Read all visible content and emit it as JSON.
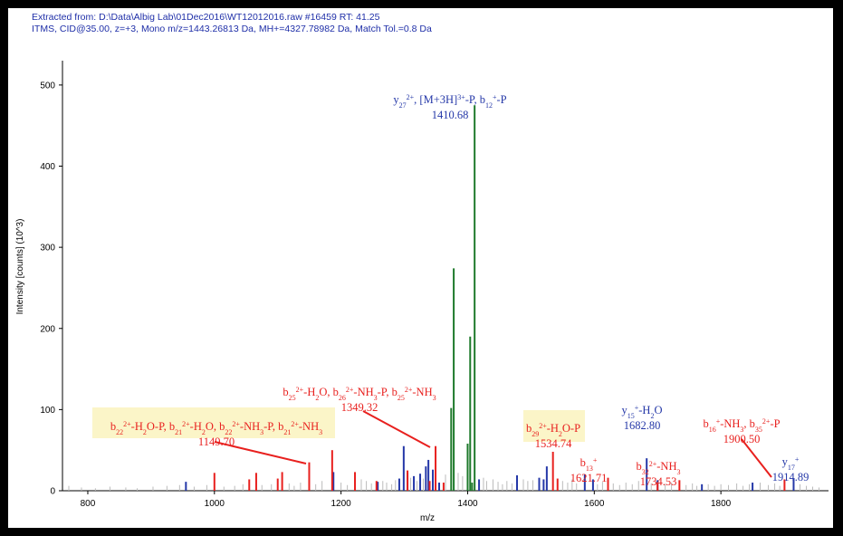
{
  "header": {
    "line1": "Extracted from: D:\\Data\\Albig Lab\\01Dec2016\\WT12012016.raw  #16459  RT: 41.25",
    "line2": "ITMS, CID@35.00, z=+3, Mono m/z=1443.26813 Da, MH+=4327.78982 Da, Match Tol.=0.8 Da"
  },
  "colors": {
    "matched_b": "#e8201e",
    "matched_y": "#2538a8",
    "precursor": "#1f7a2c",
    "unmatched": "#bbbbbb",
    "highlight_box": "#fbf5c8"
  },
  "chart_data": {
    "type": "bar",
    "xlabel": "m/z",
    "ylabel": "Intensity [counts] (10^3)",
    "xlim": [
      760,
      1970
    ],
    "ylim": [
      0,
      530
    ],
    "xticks": [
      800,
      1000,
      1200,
      1400,
      1600,
      1800
    ],
    "yticks": [
      0,
      100,
      200,
      300,
      400,
      500
    ],
    "series": [
      {
        "name": "green",
        "color": "#1f7a2c",
        "points": [
          [
            1374,
            102
          ],
          [
            1378,
            274
          ],
          [
            1400,
            58
          ],
          [
            1404,
            190
          ],
          [
            1411,
            475
          ],
          [
            1407,
            10
          ]
        ]
      },
      {
        "name": "red",
        "color": "#e8201e",
        "points": [
          [
            1000,
            22
          ],
          [
            1055,
            14
          ],
          [
            1066,
            22
          ],
          [
            1100,
            15
          ],
          [
            1107,
            23
          ],
          [
            1149.7,
            35
          ],
          [
            1186,
            50
          ],
          [
            1222,
            23
          ],
          [
            1256,
            12
          ],
          [
            1305,
            25
          ],
          [
            1340,
            12
          ],
          [
            1349.32,
            55
          ],
          [
            1362,
            10
          ],
          [
            1534.74,
            48
          ],
          [
            1542,
            15
          ],
          [
            1621.71,
            16
          ],
          [
            1700,
            10
          ],
          [
            1734.53,
            13
          ],
          [
            1900.5,
            14
          ]
        ]
      },
      {
        "name": "blue",
        "color": "#2538a8",
        "points": [
          [
            955,
            11
          ],
          [
            1188,
            23
          ],
          [
            1258,
            11
          ],
          [
            1292,
            15
          ],
          [
            1299,
            55
          ],
          [
            1305,
            22
          ],
          [
            1315,
            18
          ],
          [
            1325,
            21
          ],
          [
            1334,
            30
          ],
          [
            1338,
            38
          ],
          [
            1345,
            26
          ],
          [
            1355,
            10
          ],
          [
            1418,
            14
          ],
          [
            1478,
            19
          ],
          [
            1513,
            16
          ],
          [
            1520,
            14
          ],
          [
            1525,
            30
          ],
          [
            1585,
            20
          ],
          [
            1598,
            14
          ],
          [
            1682.8,
            40
          ],
          [
            1700,
            13
          ],
          [
            1770,
            8
          ],
          [
            1850,
            10
          ],
          [
            1914.89,
            15
          ]
        ]
      },
      {
        "name": "gray",
        "color": "#bbbbbb",
        "points": [
          [
            770,
            6
          ],
          [
            790,
            4
          ],
          [
            812,
            3
          ],
          [
            835,
            5
          ],
          [
            860,
            4
          ],
          [
            878,
            3
          ],
          [
            903,
            5
          ],
          [
            925,
            6
          ],
          [
            945,
            7
          ],
          [
            968,
            5
          ],
          [
            988,
            7
          ],
          [
            1015,
            5
          ],
          [
            1032,
            6
          ],
          [
            1045,
            8
          ],
          [
            1075,
            7
          ],
          [
            1090,
            8
          ],
          [
            1118,
            9
          ],
          [
            1126,
            6
          ],
          [
            1136,
            10
          ],
          [
            1160,
            8
          ],
          [
            1170,
            12
          ],
          [
            1200,
            10
          ],
          [
            1210,
            7
          ],
          [
            1232,
            14
          ],
          [
            1240,
            12
          ],
          [
            1248,
            9
          ],
          [
            1266,
            12
          ],
          [
            1272,
            10
          ],
          [
            1280,
            8
          ],
          [
            1286,
            13
          ],
          [
            1310,
            16
          ],
          [
            1320,
            12
          ],
          [
            1330,
            15
          ],
          [
            1365,
            20
          ],
          [
            1385,
            22
          ],
          [
            1392,
            18
          ],
          [
            1425,
            16
          ],
          [
            1430,
            12
          ],
          [
            1440,
            14
          ],
          [
            1448,
            11
          ],
          [
            1455,
            8
          ],
          [
            1462,
            12
          ],
          [
            1470,
            9
          ],
          [
            1488,
            14
          ],
          [
            1495,
            12
          ],
          [
            1503,
            13
          ],
          [
            1550,
            12
          ],
          [
            1558,
            10
          ],
          [
            1565,
            14
          ],
          [
            1572,
            9
          ],
          [
            1605,
            8
          ],
          [
            1613,
            11
          ],
          [
            1630,
            9
          ],
          [
            1640,
            7
          ],
          [
            1650,
            10
          ],
          [
            1660,
            8
          ],
          [
            1670,
            12
          ],
          [
            1690,
            9
          ],
          [
            1712,
            8
          ],
          [
            1722,
            10
          ],
          [
            1745,
            7
          ],
          [
            1755,
            9
          ],
          [
            1762,
            6
          ],
          [
            1780,
            8
          ],
          [
            1790,
            6
          ],
          [
            1800,
            8
          ],
          [
            1812,
            7
          ],
          [
            1825,
            9
          ],
          [
            1835,
            6
          ],
          [
            1845,
            8
          ],
          [
            1862,
            10
          ],
          [
            1875,
            7
          ],
          [
            1885,
            9
          ],
          [
            1893,
            6
          ],
          [
            1925,
            8
          ],
          [
            1935,
            6
          ],
          [
            1945,
            5
          ],
          [
            1955,
            4
          ]
        ]
      }
    ],
    "annotations": [
      {
        "lines": [
          [
            "y",
            "27",
            "2+",
            ", [M+3H]",
            "3+",
            "-P, b",
            "12",
            "+",
            "-P"
          ],
          [
            "1410.68"
          ]
        ],
        "color": "blue"
      },
      {
        "lines": [
          [
            "b",
            "25",
            "2+",
            "-H",
            "2",
            "O, b",
            "26",
            "2+",
            "-NH",
            "3",
            "-P, b",
            "25",
            "2+",
            "-NH",
            "3"
          ],
          [
            "1349.32"
          ]
        ],
        "color": "red"
      },
      {
        "lines": [
          [
            "b",
            "22",
            "2+",
            "-H",
            "2",
            "O-P, b",
            "21",
            "2+",
            "-H",
            "2",
            "O, b",
            "22",
            "2+",
            "-NH",
            "3",
            "-P, b",
            "21",
            "2+",
            "-NH",
            "3"
          ],
          [
            "1149.70"
          ]
        ],
        "color": "red",
        "boxed": true
      },
      {
        "lines": [
          [
            "b",
            "29",
            "2+",
            "-H",
            "2",
            "O-P"
          ],
          [
            "1534.74"
          ]
        ],
        "color": "red",
        "boxed": true
      },
      {
        "lines": [
          [
            "y",
            "15",
            "+",
            "-H",
            "2",
            "O"
          ],
          [
            "1682.80"
          ]
        ],
        "color": "blue"
      },
      {
        "lines": [
          [
            "b",
            "13",
            "+"
          ],
          [
            "1621.71"
          ]
        ],
        "color": "red"
      },
      {
        "lines": [
          [
            "b",
            "32",
            "2+",
            "-NH",
            "3"
          ],
          [
            "1734.53"
          ]
        ],
        "color": "red"
      },
      {
        "lines": [
          [
            "b",
            "16",
            "+",
            "-NH",
            "3",
            ", b",
            "35",
            "2+",
            "-P"
          ],
          [
            "1900.50"
          ]
        ],
        "color": "red"
      },
      {
        "lines": [
          [
            "y",
            "17",
            "+"
          ],
          [
            "1914.89"
          ]
        ],
        "color": "blue"
      }
    ]
  }
}
